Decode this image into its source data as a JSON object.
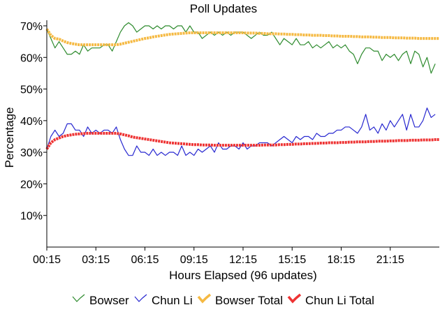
{
  "chart_data": {
    "type": "line",
    "title": "Poll Updates",
    "xlabel": "Hours Elapsed (96 updates)",
    "ylabel": "Percentage",
    "ylim": [
      0,
      70
    ],
    "xlim": [
      0,
      96
    ],
    "yticks": [
      10,
      20,
      30,
      40,
      50,
      60,
      70
    ],
    "ytick_labels": [
      "10%",
      "20%",
      "30%",
      "40%",
      "50%",
      "60%",
      "70%"
    ],
    "xticks": [
      0,
      12,
      24,
      36,
      48,
      60,
      72,
      84
    ],
    "xtick_labels": [
      "00:15",
      "03:15",
      "06:15",
      "09:15",
      "12:15",
      "15:15",
      "18:15",
      "21:15"
    ],
    "grid": false,
    "legend_position": "bottom",
    "colors": {
      "bowser": "#2e8b2e",
      "chun_li": "#2828d0",
      "bowser_total": "#f5b942",
      "chun_li_total": "#ee3333"
    },
    "series": [
      {
        "name": "Bowser",
        "color": "#2e8b2e",
        "style": "thin",
        "values": [
          69,
          66,
          63,
          65,
          63,
          61,
          61,
          62,
          61,
          64,
          62,
          63,
          63,
          63,
          64,
          64,
          62,
          65,
          68,
          70,
          71,
          70,
          68,
          69,
          70,
          70,
          69,
          70,
          69,
          70,
          70,
          69,
          70,
          70,
          68,
          70,
          68,
          68,
          66,
          67,
          68,
          67,
          68,
          67,
          68,
          67,
          68,
          68,
          68,
          67,
          66,
          67,
          68,
          67,
          67,
          68,
          66,
          64,
          66,
          65,
          64,
          66,
          64,
          64,
          65,
          63,
          64,
          63,
          64,
          65,
          63,
          64,
          63,
          64,
          62,
          61,
          58,
          61,
          63,
          63,
          62,
          62,
          59,
          61,
          60,
          61,
          59,
          61,
          62,
          58,
          62,
          61,
          57,
          60,
          55,
          58
        ]
      },
      {
        "name": "Chun Li",
        "color": "#2828d0",
        "style": "thin",
        "values": [
          31,
          35,
          37,
          35,
          36,
          39,
          39,
          37,
          37,
          35,
          38,
          36,
          37,
          36,
          37,
          37,
          36,
          38,
          34,
          31,
          29,
          29,
          32,
          30,
          30,
          29,
          31,
          29,
          30,
          29,
          30,
          30,
          29,
          32,
          29,
          30,
          29,
          31,
          30,
          31,
          32,
          30,
          33,
          31,
          31,
          32,
          32,
          31,
          33,
          31,
          32,
          32,
          33,
          33,
          33,
          32,
          33,
          34,
          35,
          34,
          33,
          35,
          34,
          35,
          35,
          34,
          36,
          35,
          35,
          36,
          36,
          37,
          37,
          38,
          38,
          37,
          36,
          38,
          42,
          37,
          38,
          36,
          39,
          37,
          40,
          38,
          40,
          42,
          37,
          42,
          38,
          38,
          40,
          44,
          41,
          42
        ]
      },
      {
        "name": "Bowser Total",
        "color": "#f5b942",
        "style": "thick",
        "values": [
          69,
          67,
          66,
          65.8,
          65.2,
          64.7,
          64.4,
          64.2,
          64,
          64,
          64,
          64,
          64,
          64,
          64,
          64,
          64,
          64,
          64.2,
          64.5,
          64.8,
          65.1,
          65.4,
          65.7,
          66,
          66.2,
          66.5,
          66.7,
          66.9,
          67.1,
          67.3,
          67.4,
          67.5,
          67.6,
          67.7,
          67.8,
          67.8,
          67.8,
          67.8,
          67.8,
          67.8,
          67.8,
          67.8,
          67.8,
          67.8,
          67.8,
          67.8,
          67.8,
          67.8,
          67.7,
          67.7,
          67.7,
          67.6,
          67.6,
          67.5,
          67.5,
          67.5,
          67.4,
          67.4,
          67.3,
          67.3,
          67.2,
          67.2,
          67.1,
          67.1,
          67,
          67,
          67,
          66.9,
          66.9,
          66.8,
          66.8,
          66.7,
          66.7,
          66.7,
          66.6,
          66.6,
          66.5,
          66.5,
          66.5,
          66.4,
          66.4,
          66.3,
          66.3,
          66.3,
          66.2,
          66.2,
          66.2,
          66.1,
          66.1,
          66.1,
          66,
          66,
          66,
          66,
          66,
          66
        ]
      },
      {
        "name": "Chun Li Total",
        "color": "#ee3333",
        "style": "thick",
        "values": [
          31,
          33,
          34,
          34.5,
          35,
          35.3,
          35.5,
          35.7,
          35.8,
          35.9,
          36,
          36,
          36,
          36,
          36,
          36,
          36,
          36,
          35.8,
          35.5,
          35.2,
          34.8,
          34.6,
          34.4,
          34.2,
          34,
          33.8,
          33.6,
          33.4,
          33.2,
          33,
          32.9,
          32.8,
          32.7,
          32.6,
          32.5,
          32.4,
          32.4,
          32.3,
          32.3,
          32.3,
          32.2,
          32.2,
          32.2,
          32.2,
          32.2,
          32.2,
          32.2,
          32.2,
          32.2,
          32.2,
          32.2,
          32.2,
          32.3,
          32.3,
          32.3,
          32.3,
          32.4,
          32.4,
          32.5,
          32.5,
          32.6,
          32.6,
          32.7,
          32.7,
          32.8,
          32.8,
          32.9,
          32.9,
          33,
          33,
          33,
          33.1,
          33.1,
          33.2,
          33.2,
          33.3,
          33.3,
          33.3,
          33.4,
          33.4,
          33.5,
          33.5,
          33.5,
          33.6,
          33.6,
          33.7,
          33.7,
          33.7,
          33.8,
          33.8,
          33.8,
          33.9,
          33.9,
          33.9,
          34,
          34
        ]
      }
    ]
  }
}
